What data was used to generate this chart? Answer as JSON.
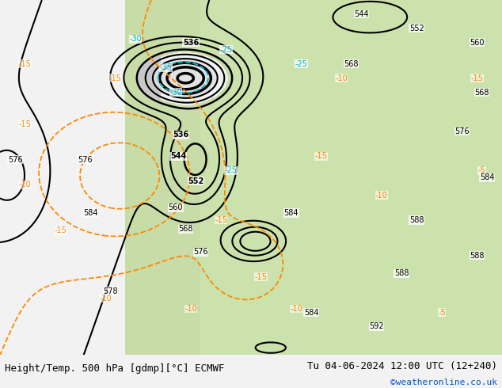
{
  "title_left": "Height/Temp. 500 hPa [gdmp][°C] ECMWF",
  "title_right": "Tu 04-06-2024 12:00 UTC (12+240)",
  "credit": "©weatheronline.co.uk",
  "map_bg_light_green": "#c8dca8",
  "map_bg_gray": "#c8c8c8",
  "map_bg_white": "#e8e8e8",
  "black_line": "#000000",
  "cyan_line": "#00b8d0",
  "orange_line": "#ff8800",
  "bottom_bg": "#f2f2f2",
  "font_title": 9,
  "font_credit": 8,
  "font_label": 7
}
